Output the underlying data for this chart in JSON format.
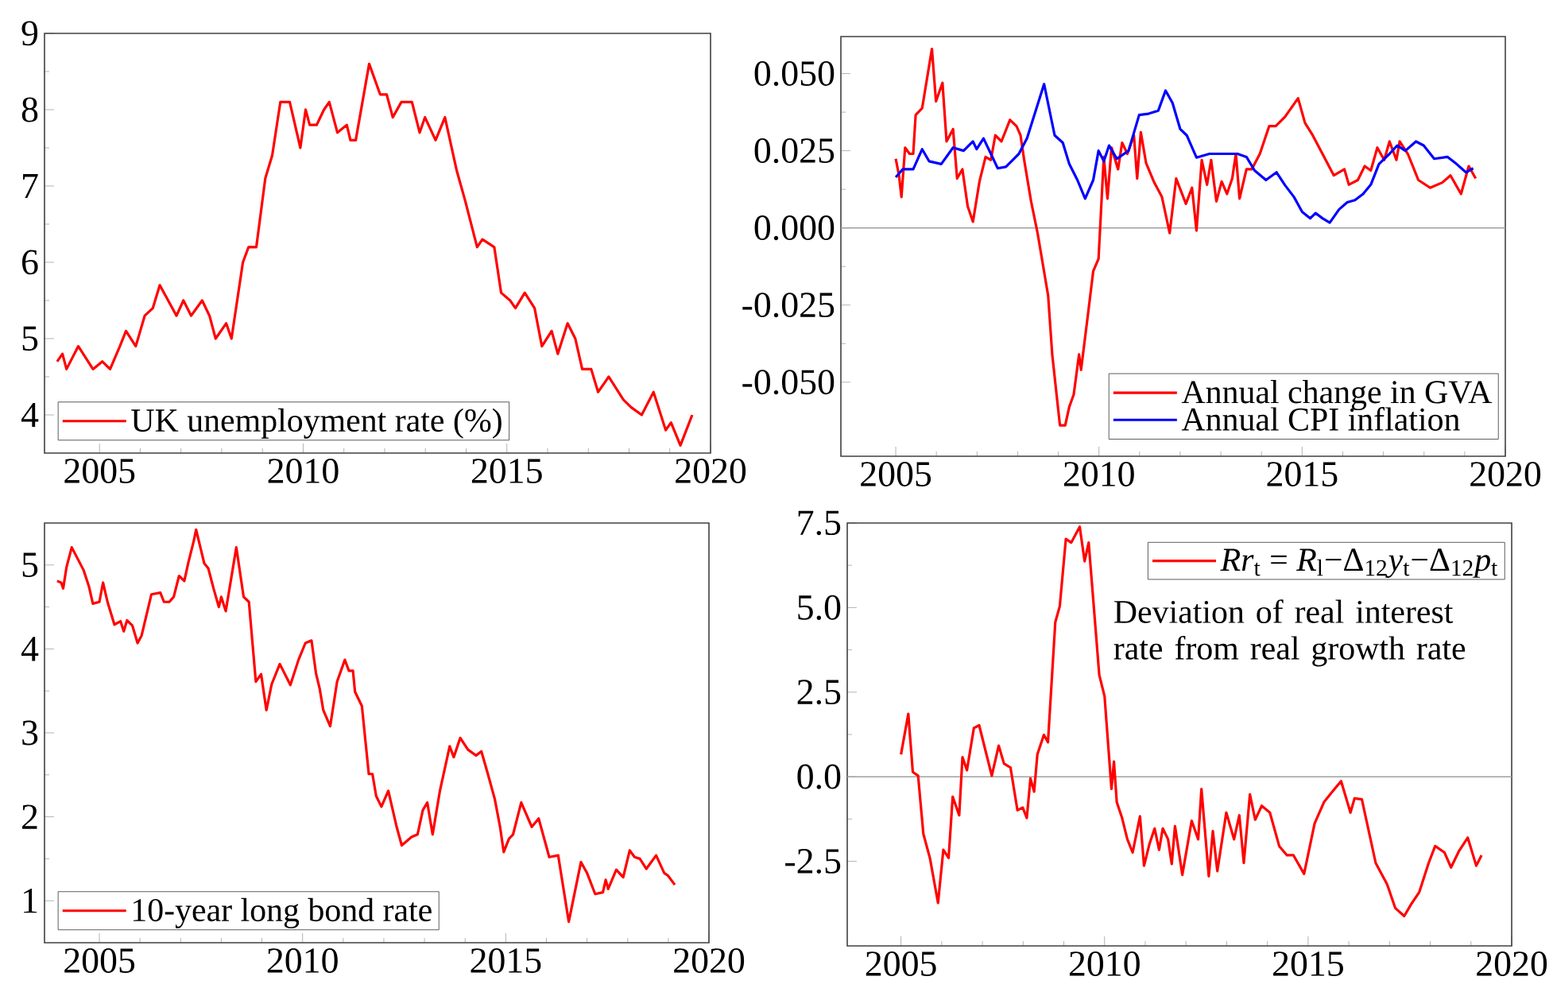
{
  "chart_data": [
    {
      "type": "line",
      "xlim": [
        2003.65,
        2020
      ],
      "ylim": [
        3.5,
        9
      ],
      "xticks": [
        2005,
        2010,
        2015,
        2020
      ],
      "yticks": [
        4,
        5,
        6,
        7,
        8,
        9
      ],
      "legend": "bottom left",
      "series": [
        {
          "name": "UK unemployment rate (%)",
          "color": "#ff0000",
          "x": [
            2003.96,
            2004.09,
            2004.19,
            2004.48,
            2004.84,
            2005.07,
            2005.26,
            2005.5,
            2005.65,
            2005.89,
            2006.11,
            2006.31,
            2006.48,
            2006.89,
            2007.06,
            2007.25,
            2007.52,
            2007.7,
            2007.85,
            2008.11,
            2008.24,
            2008.52,
            2008.66,
            2008.85,
            2009.07,
            2009.24,
            2009.44,
            2009.67,
            2009.93,
            2010.06,
            2010.16,
            2010.33,
            2010.51,
            2010.64,
            2010.84,
            2011.07,
            2011.16,
            2011.29,
            2011.62,
            2011.89,
            2012.05,
            2012.2,
            2012.41,
            2012.67,
            2012.86,
            2012.99,
            2013.25,
            2013.48,
            2013.77,
            2013.98,
            2014.27,
            2014.4,
            2014.69,
            2014.86,
            2015.08,
            2015.21,
            2015.44,
            2015.68,
            2015.86,
            2016.1,
            2016.25,
            2016.49,
            2016.68,
            2016.85,
            2017.07,
            2017.24,
            2017.5,
            2017.86,
            2018.05,
            2018.31,
            2018.6,
            2018.9,
            2019.03,
            2019.26,
            2019.55
          ],
          "values": [
            4.7,
            4.8,
            4.6,
            4.9,
            4.6,
            4.7,
            4.6,
            4.9,
            5.1,
            4.9,
            5.3,
            5.4,
            5.7,
            5.3,
            5.5,
            5.3,
            5.5,
            5.3,
            5.0,
            5.2,
            5.0,
            6.0,
            6.2,
            6.2,
            7.1,
            7.4,
            8.1,
            8.1,
            7.5,
            8.0,
            7.8,
            7.8,
            8.0,
            8.1,
            7.7,
            7.8,
            7.6,
            7.6,
            8.6,
            8.2,
            8.2,
            7.9,
            8.1,
            8.1,
            7.7,
            7.9,
            7.6,
            7.9,
            7.2,
            6.8,
            6.2,
            6.3,
            6.2,
            5.6,
            5.5,
            5.4,
            5.6,
            5.4,
            4.9,
            5.1,
            4.8,
            5.2,
            5.0,
            4.6,
            4.6,
            4.3,
            4.5,
            4.2,
            4.1,
            4.0,
            4.3,
            3.8,
            3.9,
            3.6,
            4.0
          ]
        }
      ]
    },
    {
      "type": "line",
      "xlim": [
        2003.65,
        2020
      ],
      "ylim": [
        -0.074,
        0.062
      ],
      "xticks": [
        2005,
        2010,
        2015,
        2020
      ],
      "yticks": [
        {
          "value": -0.05,
          "label": "-0.050"
        },
        {
          "value": -0.025,
          "label": "-0.025"
        },
        {
          "value": 0,
          "label": "0.000"
        },
        {
          "value": 0.025,
          "label": "0.025"
        },
        {
          "value": 0.05,
          "label": "0.050"
        }
      ],
      "legend": "bottom right",
      "ref_lines": [
        {
          "axis": "y",
          "value": 0,
          "color": "#a0a0a0"
        }
      ],
      "series": [
        {
          "name": "Annual change in GVA",
          "color": "#ff0000",
          "x": [
            2005.0,
            2005.08,
            2005.14,
            2005.23,
            2005.34,
            2005.43,
            2005.49,
            2005.65,
            2005.89,
            2005.99,
            2006.15,
            2006.25,
            2006.41,
            2006.51,
            2006.64,
            2006.77,
            2006.9,
            2007.06,
            2007.21,
            2007.34,
            2007.45,
            2007.6,
            2007.81,
            2007.97,
            2008.07,
            2008.16,
            2008.33,
            2008.49,
            2008.75,
            2008.85,
            2009.04,
            2009.17,
            2009.27,
            2009.38,
            2009.51,
            2009.56,
            2009.73,
            2009.86,
            2009.99,
            2010.12,
            2010.21,
            2010.31,
            2010.47,
            2010.57,
            2010.7,
            2010.86,
            2010.94,
            2011.03,
            2011.16,
            2011.35,
            2011.55,
            2011.74,
            2011.9,
            2012.14,
            2012.29,
            2012.4,
            2012.53,
            2012.66,
            2012.76,
            2012.89,
            2013.02,
            2013.15,
            2013.28,
            2013.37,
            2013.46,
            2013.63,
            2013.76,
            2013.96,
            2014.19,
            2014.35,
            2014.58,
            2014.9,
            2015.07,
            2015.26,
            2015.5,
            2015.78,
            2016.04,
            2016.15,
            2016.37,
            2016.54,
            2016.69,
            2016.85,
            2017.02,
            2017.15,
            2017.32,
            2017.4,
            2017.6,
            2017.86,
            2018.15,
            2018.45,
            2018.65,
            2018.91,
            2019.1,
            2019.27
          ],
          "values": [
            0.0224,
            0.017,
            0.01,
            0.026,
            0.024,
            0.024,
            0.0366,
            0.0388,
            0.058,
            0.041,
            0.047,
            0.028,
            0.032,
            0.016,
            0.019,
            0.007,
            0.002,
            0.015,
            0.023,
            0.022,
            0.03,
            0.028,
            0.035,
            0.033,
            0.03,
            0.022,
            0.0086,
            -0.0017,
            -0.022,
            -0.041,
            -0.064,
            -0.064,
            -0.058,
            -0.054,
            -0.041,
            -0.046,
            -0.028,
            -0.014,
            -0.01,
            0.023,
            0.0095,
            0.026,
            0.019,
            0.0276,
            0.024,
            0.03,
            0.016,
            0.031,
            0.021,
            0.015,
            0.01,
            -0.0017,
            0.016,
            0.0078,
            0.013,
            -0.0009,
            0.022,
            0.014,
            0.022,
            0.0086,
            0.015,
            0.011,
            0.016,
            0.024,
            0.0095,
            0.019,
            0.019,
            0.024,
            0.033,
            0.033,
            0.036,
            0.042,
            0.034,
            0.03,
            0.024,
            0.017,
            0.019,
            0.014,
            0.0155,
            0.02,
            0.0186,
            0.026,
            0.022,
            0.028,
            0.022,
            0.028,
            0.024,
            0.0155,
            0.013,
            0.0147,
            0.017,
            0.011,
            0.02,
            0.016
          ]
        },
        {
          "name": "Annual CPI inflation",
          "color": "#0000ff",
          "x": [
            2005.0,
            2005.17,
            2005.43,
            2005.65,
            2005.82,
            2006.12,
            2006.41,
            2006.67,
            2006.9,
            2006.99,
            2007.16,
            2007.51,
            2007.71,
            2008.03,
            2008.23,
            2008.65,
            2008.91,
            2009.11,
            2009.27,
            2009.47,
            2009.66,
            2009.86,
            2009.99,
            2010.12,
            2010.25,
            2010.44,
            2010.73,
            2010.99,
            2011.22,
            2011.46,
            2011.64,
            2011.81,
            2012.0,
            2012.16,
            2012.4,
            2012.72,
            2013.2,
            2013.41,
            2013.63,
            2013.83,
            2014.11,
            2014.37,
            2014.58,
            2014.8,
            2015.0,
            2015.2,
            2015.33,
            2015.5,
            2015.68,
            2015.91,
            2016.11,
            2016.3,
            2016.5,
            2016.69,
            2016.89,
            2017.15,
            2017.34,
            2017.54,
            2017.8,
            2017.99,
            2018.25,
            2018.58,
            2018.8,
            2019.03,
            2019.21
          ],
          "values": [
            0.0164,
            0.019,
            0.019,
            0.0255,
            0.0216,
            0.0207,
            0.026,
            0.025,
            0.028,
            0.0255,
            0.029,
            0.0193,
            0.0198,
            0.024,
            0.029,
            0.0466,
            0.03,
            0.0276,
            0.0207,
            0.0155,
            0.0095,
            0.0155,
            0.025,
            0.0216,
            0.0267,
            0.0224,
            0.025,
            0.0366,
            0.037,
            0.038,
            0.0445,
            0.0405,
            0.032,
            0.03,
            0.0228,
            0.024,
            0.024,
            0.024,
            0.023,
            0.0186,
            0.0155,
            0.018,
            0.0138,
            0.01,
            0.0052,
            0.0031,
            0.0048,
            0.0031,
            0.0017,
            0.006,
            0.0083,
            0.009,
            0.011,
            0.014,
            0.0207,
            0.024,
            0.0267,
            0.025,
            0.028,
            0.0267,
            0.0224,
            0.023,
            0.0207,
            0.018,
            0.0193
          ]
        }
      ]
    },
    {
      "type": "line",
      "xlim": [
        2003.65,
        2020
      ],
      "ylim": [
        0.5,
        5.5
      ],
      "xticks": [
        2005,
        2010,
        2015,
        2020
      ],
      "yticks": [
        1,
        2,
        3,
        4,
        5
      ],
      "legend": "bottom left",
      "series": [
        {
          "name": "10-year long bond rate",
          "color": "#ff0000",
          "x": [
            2003.96,
            2004.06,
            2004.11,
            2004.19,
            2004.32,
            2004.61,
            2004.74,
            2004.84,
            2005.0,
            2005.09,
            2005.2,
            2005.37,
            2005.52,
            2005.6,
            2005.68,
            2005.81,
            2005.94,
            2006.04,
            2006.28,
            2006.5,
            2006.59,
            2006.72,
            2006.83,
            2006.96,
            2007.09,
            2007.19,
            2007.32,
            2007.38,
            2007.58,
            2007.68,
            2007.81,
            2007.94,
            2008.0,
            2008.11,
            2008.37,
            2008.55,
            2008.68,
            2008.85,
            2008.98,
            2009.11,
            2009.24,
            2009.44,
            2009.7,
            2009.9,
            2010.07,
            2010.22,
            2010.33,
            2010.42,
            2010.51,
            2010.68,
            2010.85,
            2011.04,
            2011.14,
            2011.24,
            2011.29,
            2011.46,
            2011.55,
            2011.63,
            2011.72,
            2011.81,
            2011.94,
            2012.11,
            2012.31,
            2012.44,
            2012.68,
            2012.83,
            2012.96,
            2013.07,
            2013.2,
            2013.38,
            2013.62,
            2013.72,
            2013.88,
            2014.07,
            2014.27,
            2014.4,
            2014.56,
            2014.73,
            2014.86,
            2014.95,
            2015.08,
            2015.18,
            2015.38,
            2015.64,
            2015.81,
            2016.07,
            2016.29,
            2016.55,
            2016.85,
            2017.0,
            2017.2,
            2017.39,
            2017.46,
            2017.52,
            2017.72,
            2017.89,
            2018.05,
            2018.17,
            2018.3,
            2018.46,
            2018.7,
            2018.9,
            2018.99,
            2019.16
          ],
          "values": [
            4.81,
            4.79,
            4.72,
            4.97,
            5.21,
            4.94,
            4.75,
            4.54,
            4.56,
            4.79,
            4.56,
            4.29,
            4.33,
            4.21,
            4.34,
            4.28,
            4.07,
            4.16,
            4.65,
            4.67,
            4.56,
            4.56,
            4.62,
            4.87,
            4.81,
            5.03,
            5.28,
            5.42,
            5.02,
            4.96,
            4.72,
            4.5,
            4.62,
            4.45,
            5.21,
            4.62,
            4.56,
            3.61,
            3.7,
            3.27,
            3.58,
            3.82,
            3.57,
            3.87,
            4.07,
            4.1,
            3.71,
            3.53,
            3.27,
            3.08,
            3.61,
            3.87,
            3.74,
            3.74,
            3.49,
            3.32,
            2.89,
            2.51,
            2.51,
            2.25,
            2.12,
            2.31,
            1.89,
            1.66,
            1.76,
            1.79,
            2.08,
            2.17,
            1.79,
            2.31,
            2.84,
            2.71,
            2.94,
            2.8,
            2.73,
            2.78,
            2.51,
            2.21,
            1.88,
            1.58,
            1.74,
            1.79,
            2.17,
            1.88,
            1.98,
            1.52,
            1.54,
            0.75,
            1.46,
            1.33,
            1.08,
            1.1,
            1.25,
            1.14,
            1.37,
            1.28,
            1.6,
            1.52,
            1.5,
            1.38,
            1.54,
            1.33,
            1.3,
            1.19
          ]
        }
      ]
    },
    {
      "type": "line",
      "xlim": [
        2003.68,
        2020
      ],
      "ylim": [
        -5,
        7.5
      ],
      "xticks": [
        2005,
        2010,
        2015,
        2020
      ],
      "yticks": [
        {
          "value": -2.5,
          "label": "-2.5"
        },
        {
          "value": 0,
          "label": "0.0"
        },
        {
          "value": 2.5,
          "label": "2.5"
        },
        {
          "value": 5,
          "label": "5.0"
        },
        {
          "value": 7.5,
          "label": "7.5"
        }
      ],
      "legend": "top right",
      "ref_lines": [
        {
          "axis": "y",
          "value": 0,
          "color": "#a0a0a0"
        }
      ],
      "annotations": [
        "Deviation of real interest rate from real growth rate"
      ],
      "series": [
        {
          "name": "*Rr*$_{t}$ = *R*$_{l}$−Δ$_{12}$*y*$_{t}$−Δ$_{12}$*p*$_{t}$",
          "color": "#ff0000",
          "x": [
            2005.0,
            2005.18,
            2005.29,
            2005.42,
            2005.55,
            2005.71,
            2005.91,
            2006.04,
            2006.17,
            2006.27,
            2006.43,
            2006.51,
            2006.62,
            2006.79,
            2006.92,
            2007.23,
            2007.4,
            2007.53,
            2007.69,
            2007.86,
            2007.99,
            2008.09,
            2008.18,
            2008.27,
            2008.35,
            2008.51,
            2008.61,
            2008.79,
            2008.9,
            2009.05,
            2009.18,
            2009.39,
            2009.51,
            2009.61,
            2009.87,
            2010.0,
            2010.17,
            2010.23,
            2010.3,
            2010.43,
            2010.56,
            2010.69,
            2010.87,
            2010.97,
            2011.1,
            2011.23,
            2011.34,
            2011.43,
            2011.56,
            2011.65,
            2011.73,
            2011.91,
            2012.14,
            2012.3,
            2012.38,
            2012.56,
            2012.66,
            2012.77,
            2012.99,
            2013.18,
            2013.31,
            2013.42,
            2013.57,
            2013.7,
            2013.86,
            2014.06,
            2014.29,
            2014.48,
            2014.64,
            2014.9,
            2015.16,
            2015.39,
            2015.65,
            2015.81,
            2016.04,
            2016.14,
            2016.32,
            2016.66,
            2016.94,
            2017.14,
            2017.36,
            2017.53,
            2017.73,
            2017.96,
            2018.12,
            2018.35,
            2018.51,
            2018.7,
            2018.92,
            2019.13,
            2019.26
          ],
          "values": [
            0.66,
            1.86,
            0.14,
            0.03,
            -1.69,
            -2.4,
            -3.73,
            -2.16,
            -2.4,
            -0.59,
            -1.14,
            0.58,
            0.19,
            1.44,
            1.52,
            0.03,
            0.92,
            0.39,
            0.27,
            -0.99,
            -0.91,
            -1.22,
            -0.05,
            -0.44,
            0.66,
            1.24,
            1.02,
            4.57,
            5.04,
            7.03,
            6.92,
            7.39,
            6.37,
            6.92,
            3.01,
            2.38,
            -0.36,
            0.45,
            -0.75,
            -1.22,
            -1.85,
            -2.24,
            -1.17,
            -2.63,
            -2.0,
            -1.53,
            -2.16,
            -1.53,
            -1.85,
            -2.58,
            -1.46,
            -2.9,
            -1.3,
            -1.85,
            -0.36,
            -2.94,
            -1.61,
            -2.79,
            -1.06,
            -1.85,
            -1.14,
            -2.55,
            -0.52,
            -1.27,
            -0.86,
            -1.06,
            -2.05,
            -2.32,
            -2.32,
            -2.87,
            -1.38,
            -0.75,
            -0.36,
            -0.13,
            -1.06,
            -0.64,
            -0.67,
            -2.55,
            -3.18,
            -3.88,
            -4.12,
            -3.77,
            -3.41,
            -2.55,
            -2.05,
            -2.24,
            -2.68,
            -2.21,
            -1.8,
            -2.63,
            -2.32
          ]
        }
      ]
    }
  ]
}
